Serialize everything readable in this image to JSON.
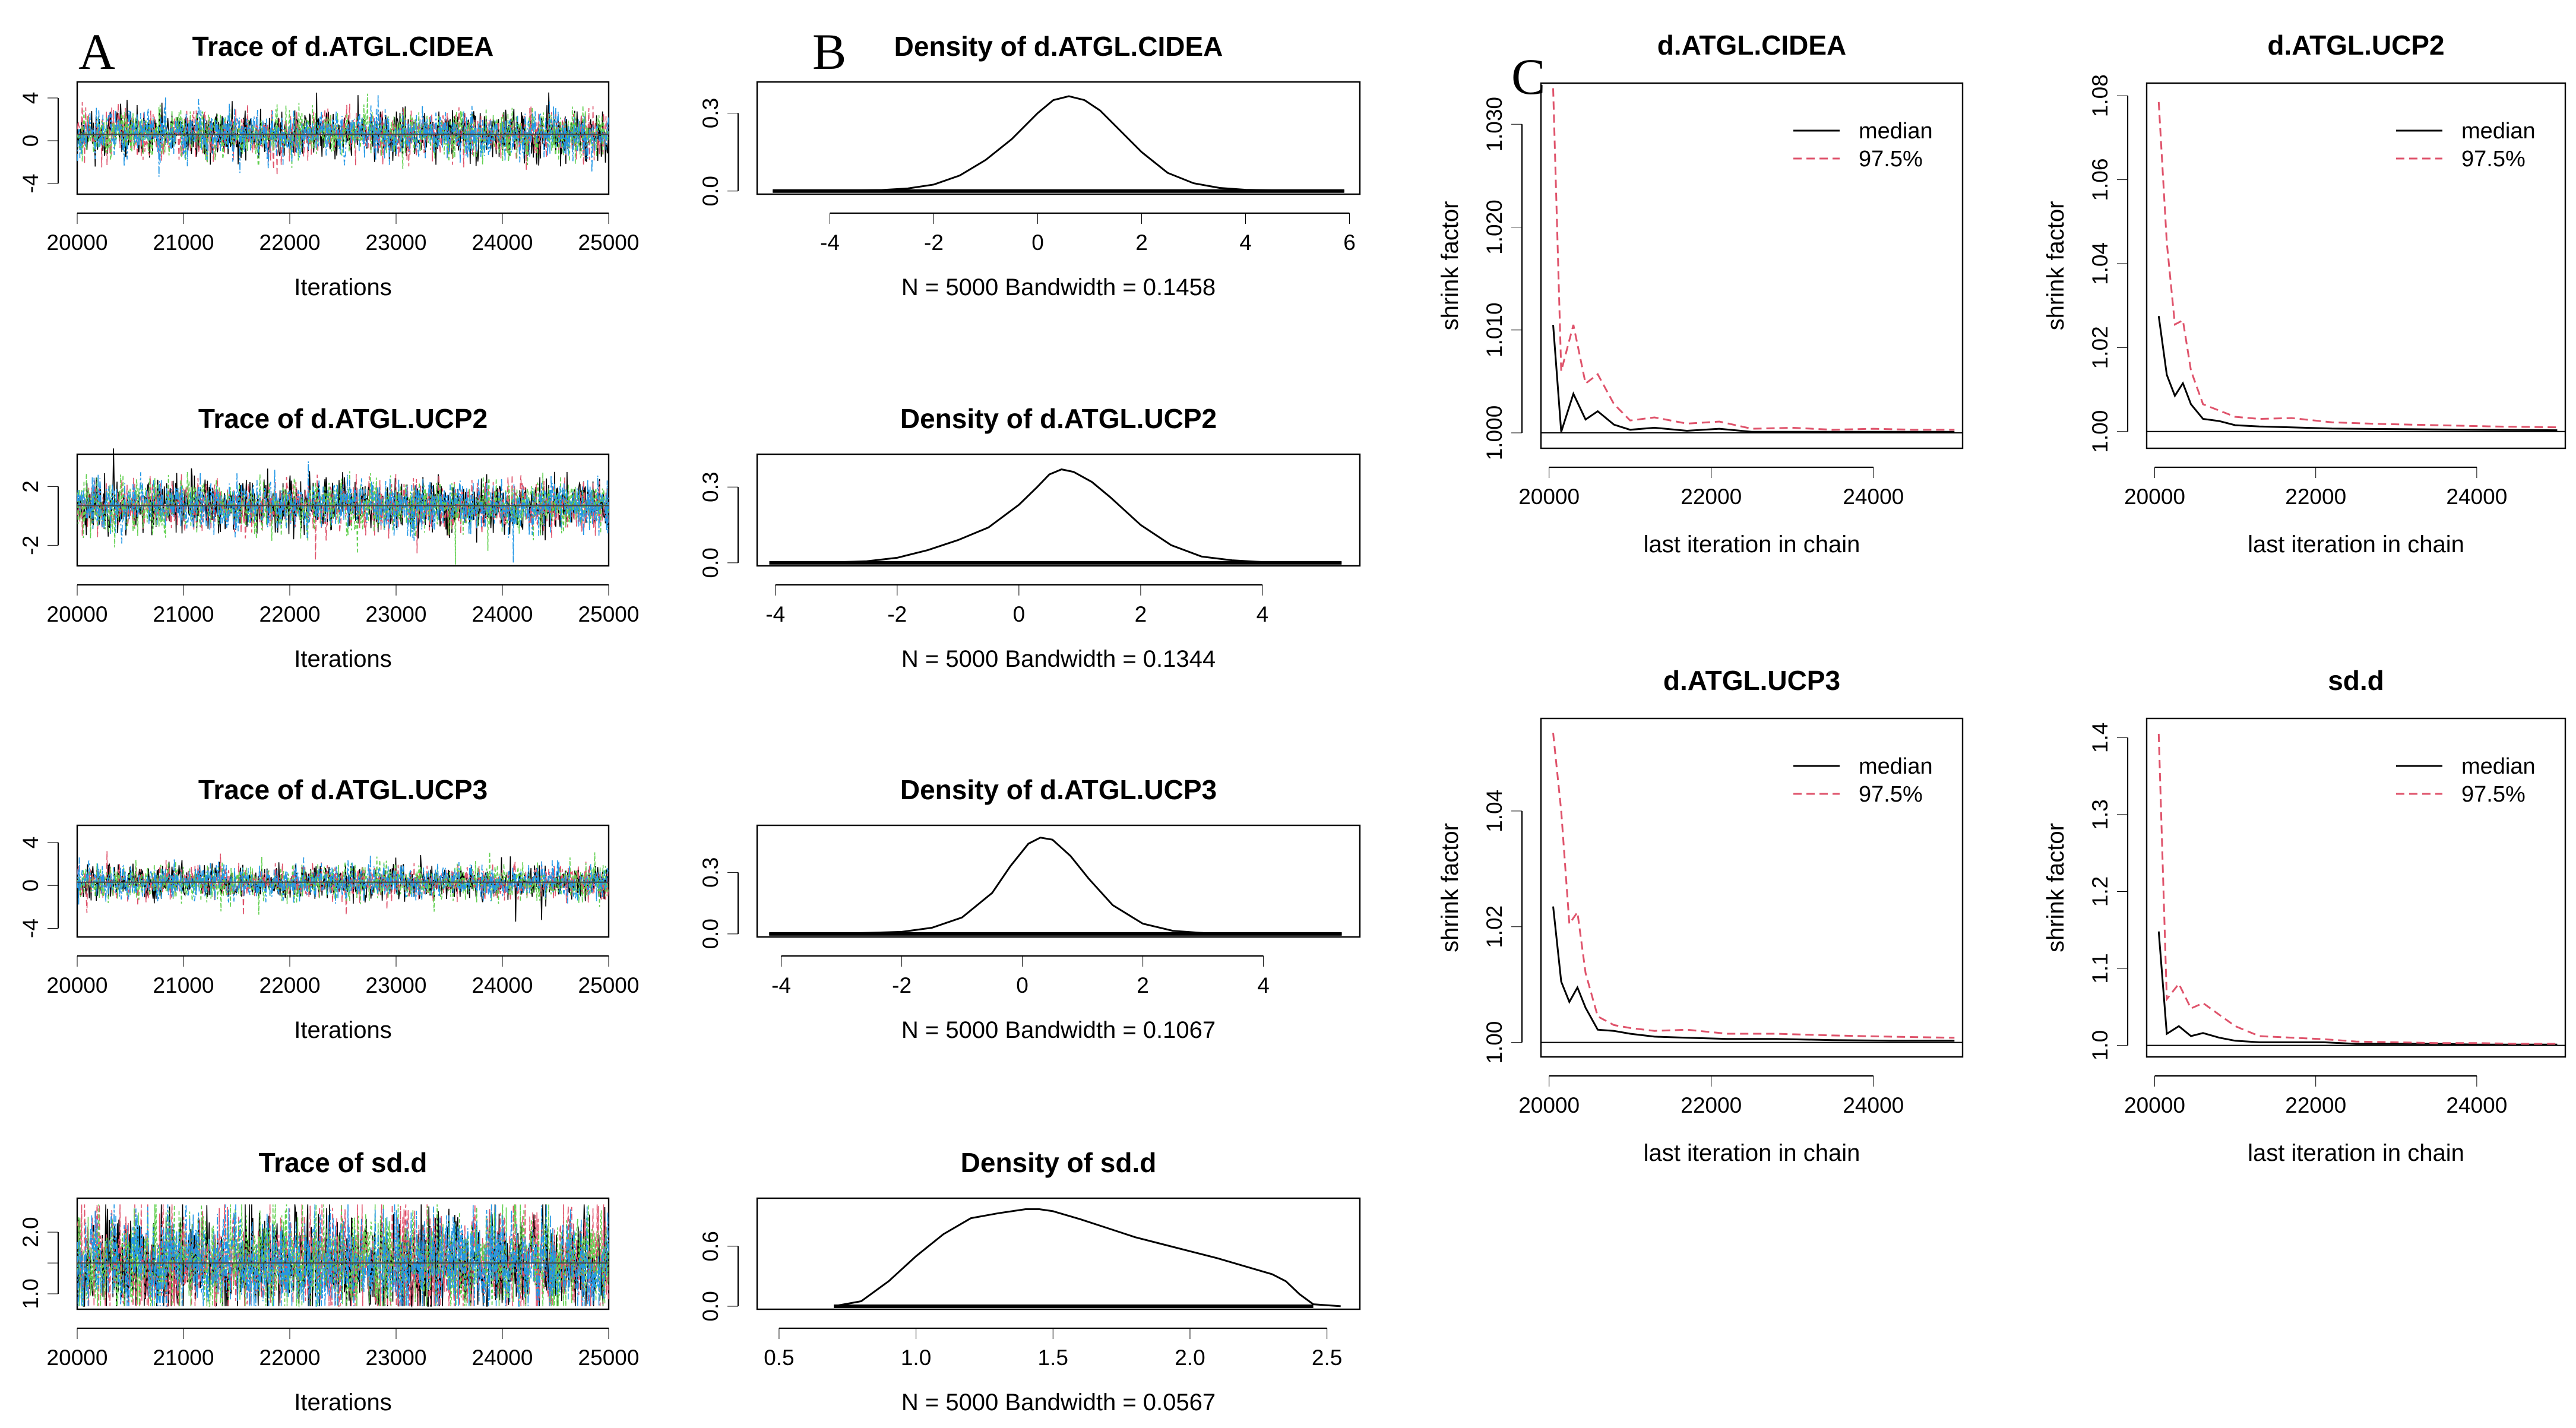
{
  "figure": {
    "panel_labels": [
      "A",
      "B",
      "C"
    ]
  },
  "chart_data": [
    {
      "type": "line",
      "kind": "trace",
      "title": "Trace of d.ATGL.CIDEA",
      "xlabel": "Iterations",
      "x_ticks": [
        20000,
        21000,
        22000,
        23000,
        24000,
        25000
      ],
      "y_ticks": [
        -4,
        0,
        4
      ],
      "xlim": [
        20000,
        25000
      ],
      "ylim": [
        -5,
        5.5
      ],
      "center": 0.6,
      "spread": 1.1,
      "seed": 11,
      "chain_colors": [
        "#000000",
        "#DF536B",
        "#61D04F",
        "#2297E6"
      ]
    },
    {
      "type": "line",
      "kind": "trace",
      "title": "Trace of d.ATGL.UCP2",
      "xlabel": "Iterations",
      "x_ticks": [
        20000,
        21000,
        22000,
        23000,
        24000,
        25000
      ],
      "y_ticks": [
        -2,
        2
      ],
      "xlim": [
        20000,
        25000
      ],
      "ylim": [
        -3.4,
        4.2
      ],
      "center": 0.7,
      "spread": 0.9,
      "seed": 23,
      "chain_colors": [
        "#000000",
        "#DF536B",
        "#61D04F",
        "#2297E6"
      ]
    },
    {
      "type": "line",
      "kind": "trace",
      "title": "Trace of d.ATGL.UCP3",
      "xlabel": "Iterations",
      "x_ticks": [
        20000,
        21000,
        22000,
        23000,
        24000,
        25000
      ],
      "y_ticks": [
        -4,
        0,
        4
      ],
      "xlim": [
        20000,
        25000
      ],
      "ylim": [
        -4.8,
        5.6
      ],
      "center": 0.3,
      "spread": 0.8,
      "seed": 37,
      "chain_colors": [
        "#000000",
        "#DF536B",
        "#61D04F",
        "#2297E6"
      ]
    },
    {
      "type": "line",
      "kind": "trace",
      "title": "Trace of sd.d",
      "xlabel": "Iterations",
      "x_ticks": [
        20000,
        21000,
        22000,
        23000,
        24000,
        25000
      ],
      "y_ticks": [
        1.0,
        1.5,
        2.0
      ],
      "y_tick_labels": [
        "1.0",
        "",
        "2.0"
      ],
      "xlim": [
        20000,
        25000
      ],
      "ylim": [
        0.75,
        2.55
      ],
      "center": 1.5,
      "spread": 0.45,
      "seed": 53,
      "clip": [
        0.8,
        2.45
      ],
      "chain_colors": [
        "#000000",
        "#DF536B",
        "#61D04F",
        "#2297E6"
      ]
    },
    {
      "type": "line",
      "kind": "density",
      "title": "Density of d.ATGL.CIDEA",
      "xlabel": "N = 5000   Bandwidth = 0.1458",
      "x_ticks": [
        -4,
        -2,
        0,
        2,
        4,
        6
      ],
      "y_ticks": [
        0.0,
        0.3
      ],
      "y_tick_labels": [
        "0.0",
        "0.3"
      ],
      "xlim": [
        -5.4,
        6.2
      ],
      "ylim": [
        -0.012,
        0.42
      ],
      "x": [
        -5.1,
        -4,
        -3,
        -2.5,
        -2,
        -1.5,
        -1,
        -0.5,
        0,
        0.3,
        0.6,
        0.9,
        1.2,
        1.6,
        2,
        2.5,
        3,
        3.5,
        4,
        5,
        5.9
      ],
      "y": [
        0,
        0.001,
        0.004,
        0.01,
        0.025,
        0.06,
        0.12,
        0.2,
        0.3,
        0.35,
        0.365,
        0.35,
        0.31,
        0.23,
        0.15,
        0.07,
        0.03,
        0.012,
        0.005,
        0.001,
        0
      ],
      "rug_range": [
        -5.1,
        5.9
      ]
    },
    {
      "type": "line",
      "kind": "density",
      "title": "Density of d.ATGL.UCP2",
      "xlabel": "N = 5000   Bandwidth = 0.1344",
      "x_ticks": [
        -4,
        -2,
        0,
        2,
        4
      ],
      "y_ticks": [
        0.0,
        0.3
      ],
      "y_tick_labels": [
        "0.0",
        "0.3"
      ],
      "xlim": [
        -4.3,
        5.6
      ],
      "ylim": [
        -0.012,
        0.43
      ],
      "x": [
        -4.1,
        -3,
        -2.5,
        -2,
        -1.5,
        -1,
        -0.5,
        0,
        0.3,
        0.5,
        0.7,
        0.9,
        1.2,
        1.5,
        2,
        2.5,
        3,
        3.5,
        4,
        5.3
      ],
      "y": [
        0,
        0.002,
        0.006,
        0.02,
        0.05,
        0.09,
        0.14,
        0.23,
        0.3,
        0.35,
        0.37,
        0.36,
        0.32,
        0.26,
        0.15,
        0.07,
        0.025,
        0.01,
        0.003,
        0
      ],
      "rug_range": [
        -4.1,
        5.3
      ]
    },
    {
      "type": "line",
      "kind": "density",
      "title": "Density of d.ATGL.UCP3",
      "xlabel": "N = 5000   Bandwidth = 0.1067",
      "x_ticks": [
        -4,
        -2,
        0,
        2,
        4
      ],
      "y_ticks": [
        0.0,
        0.3
      ],
      "y_tick_labels": [
        "0.0",
        "0.3"
      ],
      "xlim": [
        -4.4,
        5.6
      ],
      "ylim": [
        -0.015,
        0.53
      ],
      "x": [
        -4.2,
        -3,
        -2,
        -1.5,
        -1,
        -0.5,
        -0.2,
        0.1,
        0.3,
        0.5,
        0.8,
        1.1,
        1.5,
        2,
        2.5,
        3,
        4,
        5.3
      ],
      "y": [
        0,
        0.001,
        0.01,
        0.03,
        0.08,
        0.2,
        0.33,
        0.44,
        0.47,
        0.46,
        0.38,
        0.27,
        0.14,
        0.05,
        0.015,
        0.004,
        0.001,
        0
      ],
      "rug_range": [
        -4.2,
        5.3
      ]
    },
    {
      "type": "line",
      "kind": "density",
      "title": "Density of sd.d",
      "xlabel": "N = 5000   Bandwidth = 0.0567",
      "x_ticks": [
        0.5,
        1.0,
        1.5,
        2.0,
        2.5
      ],
      "x_tick_labels": [
        "0.5",
        "1.0",
        "1.5",
        "2.0",
        "2.5"
      ],
      "y_ticks": [
        0.0,
        0.6
      ],
      "y_tick_labels": [
        "0.0",
        "0.6"
      ],
      "xlim": [
        0.42,
        2.62
      ],
      "ylim": [
        -0.03,
        1.08
      ],
      "x": [
        0.7,
        0.8,
        0.9,
        1.0,
        1.1,
        1.2,
        1.3,
        1.4,
        1.45,
        1.5,
        1.6,
        1.7,
        1.8,
        1.9,
        2.0,
        2.1,
        2.2,
        2.3,
        2.35,
        2.4,
        2.45,
        2.55
      ],
      "y": [
        0,
        0.05,
        0.25,
        0.5,
        0.72,
        0.88,
        0.93,
        0.97,
        0.97,
        0.95,
        0.87,
        0.78,
        0.69,
        0.62,
        0.55,
        0.48,
        0.4,
        0.32,
        0.25,
        0.12,
        0.02,
        0
      ],
      "rug_range": [
        0.7,
        2.45
      ]
    },
    {
      "type": "line",
      "kind": "gelman",
      "title": "d.ATGL.CIDEA",
      "xlabel": "last iteration in chain",
      "ylabel": "shrink factor",
      "x_ticks": [
        20000,
        22000,
        24000
      ],
      "y_ticks": [
        1.0,
        1.01,
        1.02,
        1.03
      ],
      "y_tick_labels": [
        "1.000",
        "1.010",
        "1.020",
        "1.030"
      ],
      "xlim": [
        19900,
        25100
      ],
      "ylim": [
        0.9985,
        1.034
      ],
      "baseline": 1,
      "series": [
        {
          "name": "median",
          "color": "#000000",
          "dashed": false,
          "x": [
            20050,
            20150,
            20300,
            20450,
            20600,
            20800,
            21000,
            21300,
            21700,
            22100,
            22500,
            23000,
            23500,
            24000,
            24500,
            25000
          ],
          "y": [
            1.0105,
            1.0001,
            1.0038,
            1.0013,
            1.0021,
            1.0008,
            1.0003,
            1.0005,
            1.0002,
            1.0004,
            1.0001,
            1.0001,
            1.0001,
            1.0001,
            1.0001,
            1.0001
          ]
        },
        {
          "name": "97.5%",
          "color": "#DF536B",
          "dashed": true,
          "x": [
            20050,
            20150,
            20300,
            20450,
            20600,
            20800,
            21000,
            21300,
            21700,
            22100,
            22500,
            23000,
            23500,
            24000,
            24500,
            25000
          ],
          "y": [
            1.0335,
            1.006,
            1.0105,
            1.0048,
            1.0057,
            1.0028,
            1.0012,
            1.0015,
            1.0009,
            1.0011,
            1.0004,
            1.0005,
            1.0003,
            1.0004,
            1.0003,
            1.0003
          ]
        }
      ]
    },
    {
      "type": "line",
      "kind": "gelman",
      "title": "d.ATGL.UCP2",
      "xlabel": "last iteration in chain",
      "ylabel": "shrink factor",
      "x_ticks": [
        20000,
        22000,
        24000
      ],
      "y_ticks": [
        1.0,
        1.02,
        1.04,
        1.06,
        1.08
      ],
      "y_tick_labels": [
        "1.00",
        "1.02",
        "1.04",
        "1.06",
        "1.08"
      ],
      "xlim": [
        19900,
        25100
      ],
      "ylim": [
        0.996,
        1.083
      ],
      "baseline": 1,
      "series": [
        {
          "name": "median",
          "color": "#000000",
          "dashed": false,
          "x": [
            20050,
            20150,
            20250,
            20350,
            20450,
            20600,
            20800,
            21000,
            21300,
            21700,
            22200,
            22800,
            23500,
            24200,
            25000
          ],
          "y": [
            1.0275,
            1.0135,
            1.0085,
            1.0115,
            1.0065,
            1.003,
            1.0025,
            1.0015,
            1.0012,
            1.001,
            1.0007,
            1.0006,
            1.0005,
            1.0004,
            1.0003
          ]
        },
        {
          "name": "97.5%",
          "color": "#DF536B",
          "dashed": true,
          "x": [
            20050,
            20150,
            20250,
            20350,
            20450,
            20600,
            20800,
            21000,
            21300,
            21700,
            22200,
            22800,
            23500,
            24200,
            25000
          ],
          "y": [
            1.0785,
            1.045,
            1.0255,
            1.0265,
            1.0145,
            1.0065,
            1.005,
            1.0035,
            1.003,
            1.0032,
            1.0022,
            1.0018,
            1.0015,
            1.0012,
            1.001
          ]
        }
      ]
    },
    {
      "type": "line",
      "kind": "gelman",
      "title": "d.ATGL.UCP3",
      "xlabel": "last iteration in chain",
      "ylabel": "shrink factor",
      "x_ticks": [
        20000,
        22000,
        24000
      ],
      "y_ticks": [
        1.0,
        1.02,
        1.04
      ],
      "y_tick_labels": [
        "1.00",
        "1.02",
        "1.04"
      ],
      "xlim": [
        19900,
        25100
      ],
      "ylim": [
        0.9975,
        1.056
      ],
      "baseline": 1,
      "series": [
        {
          "name": "median",
          "color": "#000000",
          "dashed": false,
          "x": [
            20050,
            20150,
            20250,
            20350,
            20450,
            20600,
            20800,
            21000,
            21300,
            21700,
            22200,
            22800,
            23500,
            24200,
            25000
          ],
          "y": [
            1.0235,
            1.0105,
            1.007,
            1.0095,
            1.006,
            1.0022,
            1.002,
            1.0015,
            1.001,
            1.0008,
            1.0006,
            1.0006,
            1.0004,
            1.0003,
            1.0003
          ]
        },
        {
          "name": "97.5%",
          "color": "#DF536B",
          "dashed": true,
          "x": [
            20050,
            20150,
            20250,
            20350,
            20450,
            20600,
            20800,
            21000,
            21300,
            21700,
            22200,
            22800,
            23500,
            24200,
            25000
          ],
          "y": [
            1.0535,
            1.04,
            1.0205,
            1.0225,
            1.012,
            1.0045,
            1.003,
            1.0025,
            1.002,
            1.0022,
            1.0015,
            1.0015,
            1.0012,
            1.001,
            1.0008
          ]
        }
      ]
    },
    {
      "type": "line",
      "kind": "gelman",
      "title": "sd.d",
      "xlabel": "last iteration in chain",
      "ylabel": "shrink factor",
      "x_ticks": [
        20000,
        22000,
        24000
      ],
      "y_ticks": [
        1.0,
        1.1,
        1.2,
        1.3,
        1.4
      ],
      "y_tick_labels": [
        "1.0",
        "1.1",
        "1.2",
        "1.3",
        "1.4"
      ],
      "xlim": [
        19900,
        25100
      ],
      "ylim": [
        0.985,
        1.425
      ],
      "baseline": 1,
      "series": [
        {
          "name": "median",
          "color": "#000000",
          "dashed": false,
          "x": [
            20050,
            20150,
            20300,
            20450,
            20600,
            20800,
            21000,
            21300,
            21700,
            22100,
            22500,
            23000,
            23500,
            24000,
            24500,
            25000
          ],
          "y": [
            1.148,
            1.015,
            1.025,
            1.012,
            1.016,
            1.01,
            1.006,
            1.004,
            1.004,
            1.004,
            1.002,
            1.002,
            1.002,
            1.001,
            1.001,
            1.001
          ]
        },
        {
          "name": "97.5%",
          "color": "#DF536B",
          "dashed": true,
          "x": [
            20050,
            20150,
            20300,
            20450,
            20600,
            20800,
            21000,
            21300,
            21700,
            22100,
            22500,
            23000,
            23500,
            24000,
            24500,
            25000
          ],
          "y": [
            1.405,
            1.06,
            1.08,
            1.048,
            1.055,
            1.04,
            1.025,
            1.012,
            1.01,
            1.008,
            1.005,
            1.004,
            1.003,
            1.003,
            1.002,
            1.002
          ]
        }
      ]
    }
  ]
}
